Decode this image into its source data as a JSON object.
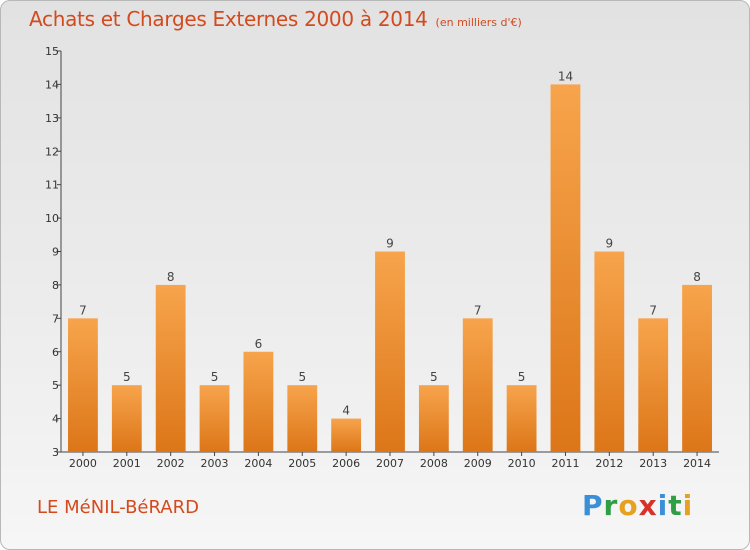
{
  "header": {
    "title": "Achats et Charges Externes 2000 à 2014",
    "unit": "(en milliers d'€)"
  },
  "footer": {
    "commune": "LE MéNIL-BéRARD",
    "brand_letters": [
      "P",
      "r",
      "o",
      "x",
      "i",
      "t",
      "i"
    ],
    "brand_colors": [
      "#3a8fd6",
      "#2f9e45",
      "#e8a020",
      "#d8302a",
      "#3a8fd6",
      "#2f9e45",
      "#e8a020"
    ]
  },
  "colors": {
    "bar_top": "#f7a44c",
    "bar_bottom": "#dc7618",
    "text_accent": "#d34a1e"
  },
  "chart_data": {
    "type": "bar",
    "title": "Achats et Charges Externes 2000 à 2014",
    "subtitle": "(en milliers d'€)",
    "categories": [
      "2000",
      "2001",
      "2002",
      "2003",
      "2004",
      "2005",
      "2006",
      "2007",
      "2008",
      "2009",
      "2010",
      "2011",
      "2012",
      "2013",
      "2014"
    ],
    "values": [
      7,
      5,
      8,
      5,
      6,
      5,
      4,
      9,
      5,
      7,
      5,
      14,
      9,
      7,
      8
    ],
    "yticks": [
      3,
      4,
      5,
      6,
      7,
      8,
      9,
      10,
      11,
      12,
      13,
      14,
      15
    ],
    "ylim": [
      3,
      15
    ],
    "grid": false,
    "xlabel": "",
    "ylabel": ""
  }
}
